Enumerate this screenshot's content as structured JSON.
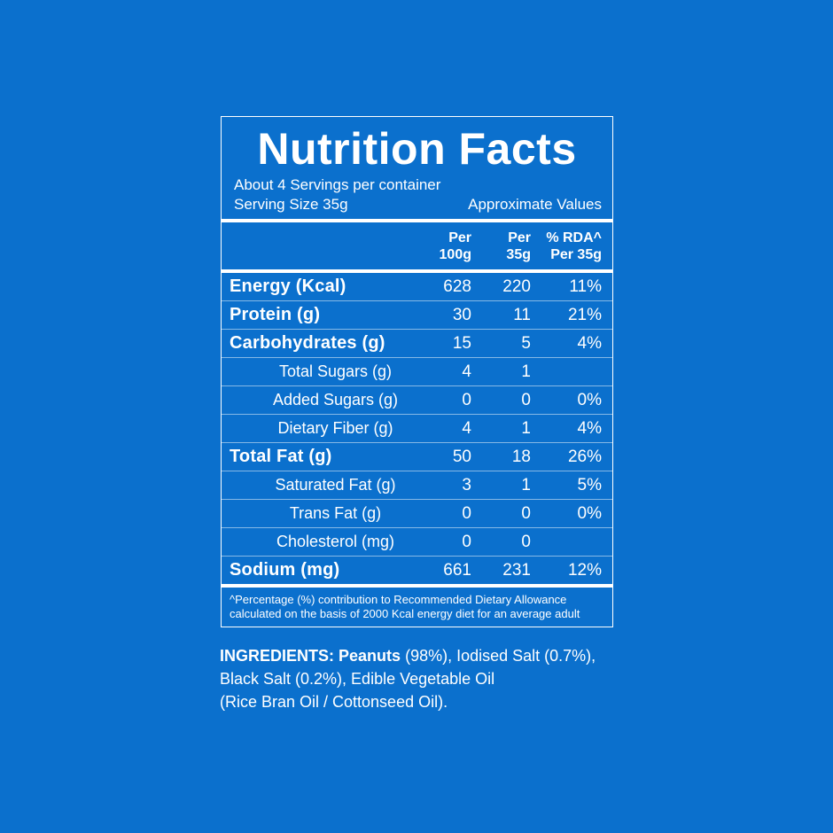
{
  "colors": {
    "background": "#0b70cd",
    "foreground": "#ffffff",
    "row_divider": "rgba(255,255,255,0.5)"
  },
  "label": {
    "title": "Nutrition Facts",
    "servings_line": "About 4 Servings per container",
    "serving_size": "Serving Size 35g",
    "approx_values": "Approximate Values",
    "columns": {
      "per100": "Per\n100g",
      "per35": "Per\n35g",
      "rda": "% RDA^\nPer 35g"
    },
    "rows": [
      {
        "name": "Energy (Kcal)",
        "per100": "628",
        "per35": "220",
        "rda": "11%"
      },
      {
        "name": "Protein (g)",
        "per100": "30",
        "per35": "11",
        "rda": "21%"
      },
      {
        "name": "Carbohydrates (g)",
        "per100": "15",
        "per35": "5",
        "rda": "4%"
      },
      {
        "name": "Total Sugars (g)",
        "per100": "4",
        "per35": "1",
        "rda": ""
      },
      {
        "name": "Added Sugars (g)",
        "per100": "0",
        "per35": "0",
        "rda": "0%"
      },
      {
        "name": "Dietary Fiber (g)",
        "per100": "4",
        "per35": "1",
        "rda": "4%"
      },
      {
        "name": "Total Fat (g)",
        "per100": "50",
        "per35": "18",
        "rda": "26%"
      },
      {
        "name": "Saturated Fat (g)",
        "per100": "3",
        "per35": "1",
        "rda": "5%"
      },
      {
        "name": "Trans Fat (g)",
        "per100": "0",
        "per35": "0",
        "rda": "0%"
      },
      {
        "name": "Cholesterol (mg)",
        "per100": "0",
        "per35": "0",
        "rda": ""
      },
      {
        "name": "Sodium (mg)",
        "per100": "661",
        "per35": "231",
        "rda": "12%"
      }
    ],
    "footnote_line1": "^Percentage (%) contribution to Recommended Dietary Allowance",
    "footnote_line2": "calculated on the basis of 2000 Kcal energy diet for an average adult"
  },
  "ingredients": {
    "heading": "INGREDIENTS:",
    "bold_item": "Peanuts",
    "line1_rest": "(98%), Iodised Salt (0.7%),",
    "line2": "Black Salt (0.2%), Edible Vegetable Oil",
    "line3": "(Rice Bran Oil / Cottonseed Oil)."
  }
}
